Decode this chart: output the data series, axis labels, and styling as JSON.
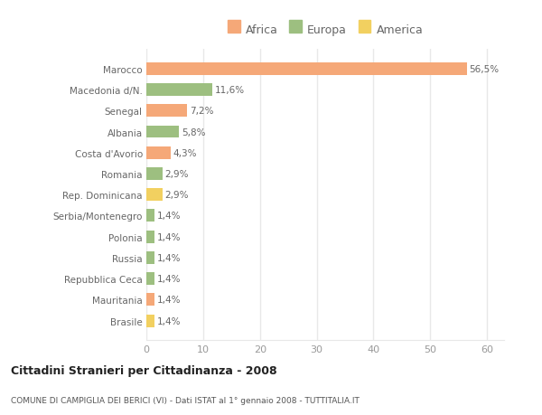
{
  "categories": [
    "Brasile",
    "Mauritania",
    "Repubblica Ceca",
    "Russia",
    "Polonia",
    "Serbia/Montenegro",
    "Rep. Dominicana",
    "Romania",
    "Costa d'Avorio",
    "Albania",
    "Senegal",
    "Macedonia d/N.",
    "Marocco"
  ],
  "values": [
    1.4,
    1.4,
    1.4,
    1.4,
    1.4,
    1.4,
    2.9,
    2.9,
    4.3,
    5.8,
    7.2,
    11.6,
    56.5
  ],
  "colors": [
    "#f2d060",
    "#f5a878",
    "#9dbf80",
    "#9dbf80",
    "#9dbf80",
    "#9dbf80",
    "#f2d060",
    "#9dbf80",
    "#f5a878",
    "#9dbf80",
    "#f5a878",
    "#9dbf80",
    "#f5a878"
  ],
  "labels": [
    "1,4%",
    "1,4%",
    "1,4%",
    "1,4%",
    "1,4%",
    "1,4%",
    "2,9%",
    "2,9%",
    "4,3%",
    "5,8%",
    "7,2%",
    "11,6%",
    "56,5%"
  ],
  "legend_labels": [
    "Africa",
    "Europa",
    "America"
  ],
  "legend_colors": [
    "#f5a878",
    "#9dbf80",
    "#f2d060"
  ],
  "title": "Cittadini Stranieri per Cittadinanza - 2008",
  "subtitle": "COMUNE DI CAMPIGLIA DEI BERICI (VI) - Dati ISTAT al 1° gennaio 2008 - TUTTITALIA.IT",
  "xlim": [
    0,
    63
  ],
  "xticks": [
    0,
    10,
    20,
    30,
    40,
    50,
    60
  ],
  "bg_color": "#ffffff",
  "plot_bg_color": "#ffffff",
  "grid_color": "#e8e8e8",
  "label_color": "#666666",
  "tick_color": "#999999"
}
